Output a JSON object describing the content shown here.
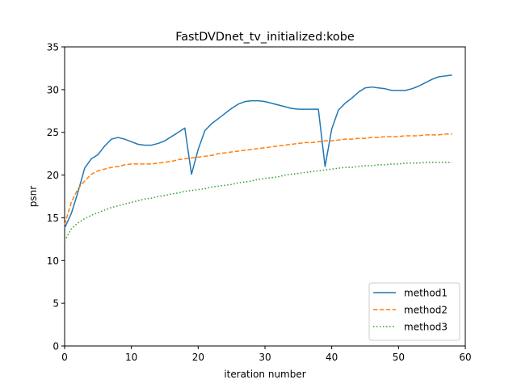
{
  "chart_data": {
    "type": "line",
    "title": "FastDVDnet_tv_initialized:kobe",
    "xlabel": "iteration number",
    "ylabel": "psnr",
    "xlim": [
      0,
      60
    ],
    "ylim": [
      0,
      35
    ],
    "xticks": [
      0,
      10,
      20,
      30,
      40,
      50,
      60
    ],
    "yticks": [
      0,
      5,
      10,
      15,
      20,
      25,
      30,
      35
    ],
    "grid": false,
    "legend_position": "lower-right",
    "x": [
      0,
      1,
      2,
      3,
      4,
      5,
      6,
      7,
      8,
      9,
      10,
      11,
      12,
      13,
      14,
      15,
      16,
      17,
      18,
      19,
      20,
      21,
      22,
      23,
      24,
      25,
      26,
      27,
      28,
      29,
      30,
      31,
      32,
      33,
      34,
      35,
      36,
      37,
      38,
      39,
      40,
      41,
      42,
      43,
      44,
      45,
      46,
      47,
      48,
      49,
      50,
      51,
      52,
      53,
      54,
      55,
      56,
      57,
      58
    ],
    "series": [
      {
        "name": "method1",
        "color": "#1f77b4",
        "style": "solid",
        "values": [
          13.8,
          15.5,
          18.0,
          20.8,
          21.9,
          22.4,
          23.4,
          24.2,
          24.4,
          24.2,
          23.9,
          23.6,
          23.5,
          23.5,
          23.7,
          24.0,
          24.5,
          25.0,
          25.5,
          20.1,
          23.0,
          25.2,
          26.0,
          26.6,
          27.2,
          27.8,
          28.3,
          28.6,
          28.7,
          28.7,
          28.6,
          28.4,
          28.2,
          28.0,
          27.8,
          27.7,
          27.7,
          27.7,
          27.7,
          21.0,
          25.4,
          27.6,
          28.4,
          29.0,
          29.7,
          30.2,
          30.3,
          30.2,
          30.1,
          29.9,
          29.9,
          29.9,
          30.1,
          30.4,
          30.8,
          31.2,
          31.5,
          31.6,
          31.7
        ]
      },
      {
        "name": "method2",
        "color": "#ff7f0e",
        "style": "dashed",
        "values": [
          14.2,
          16.8,
          18.4,
          19.3,
          20.1,
          20.5,
          20.7,
          20.9,
          21.0,
          21.2,
          21.3,
          21.3,
          21.3,
          21.3,
          21.4,
          21.5,
          21.6,
          21.8,
          21.9,
          22.0,
          22.1,
          22.2,
          22.3,
          22.5,
          22.6,
          22.7,
          22.8,
          22.9,
          23.0,
          23.1,
          23.2,
          23.3,
          23.4,
          23.5,
          23.6,
          23.7,
          23.8,
          23.8,
          23.9,
          24.0,
          24.0,
          24.1,
          24.2,
          24.2,
          24.3,
          24.3,
          24.4,
          24.4,
          24.5,
          24.5,
          24.5,
          24.6,
          24.6,
          24.6,
          24.7,
          24.7,
          24.7,
          24.8,
          24.8
        ]
      },
      {
        "name": "method3",
        "color": "#2ca02c",
        "style": "dotted",
        "values": [
          12.3,
          13.7,
          14.4,
          14.9,
          15.3,
          15.6,
          15.9,
          16.2,
          16.4,
          16.6,
          16.8,
          17.0,
          17.2,
          17.3,
          17.5,
          17.6,
          17.8,
          17.9,
          18.1,
          18.2,
          18.3,
          18.4,
          18.6,
          18.7,
          18.8,
          18.9,
          19.1,
          19.2,
          19.3,
          19.5,
          19.6,
          19.7,
          19.8,
          20.0,
          20.1,
          20.2,
          20.3,
          20.4,
          20.5,
          20.6,
          20.7,
          20.8,
          20.9,
          20.9,
          21.0,
          21.1,
          21.1,
          21.2,
          21.2,
          21.3,
          21.3,
          21.4,
          21.4,
          21.4,
          21.5,
          21.5,
          21.5,
          21.5,
          21.5
        ]
      }
    ]
  }
}
